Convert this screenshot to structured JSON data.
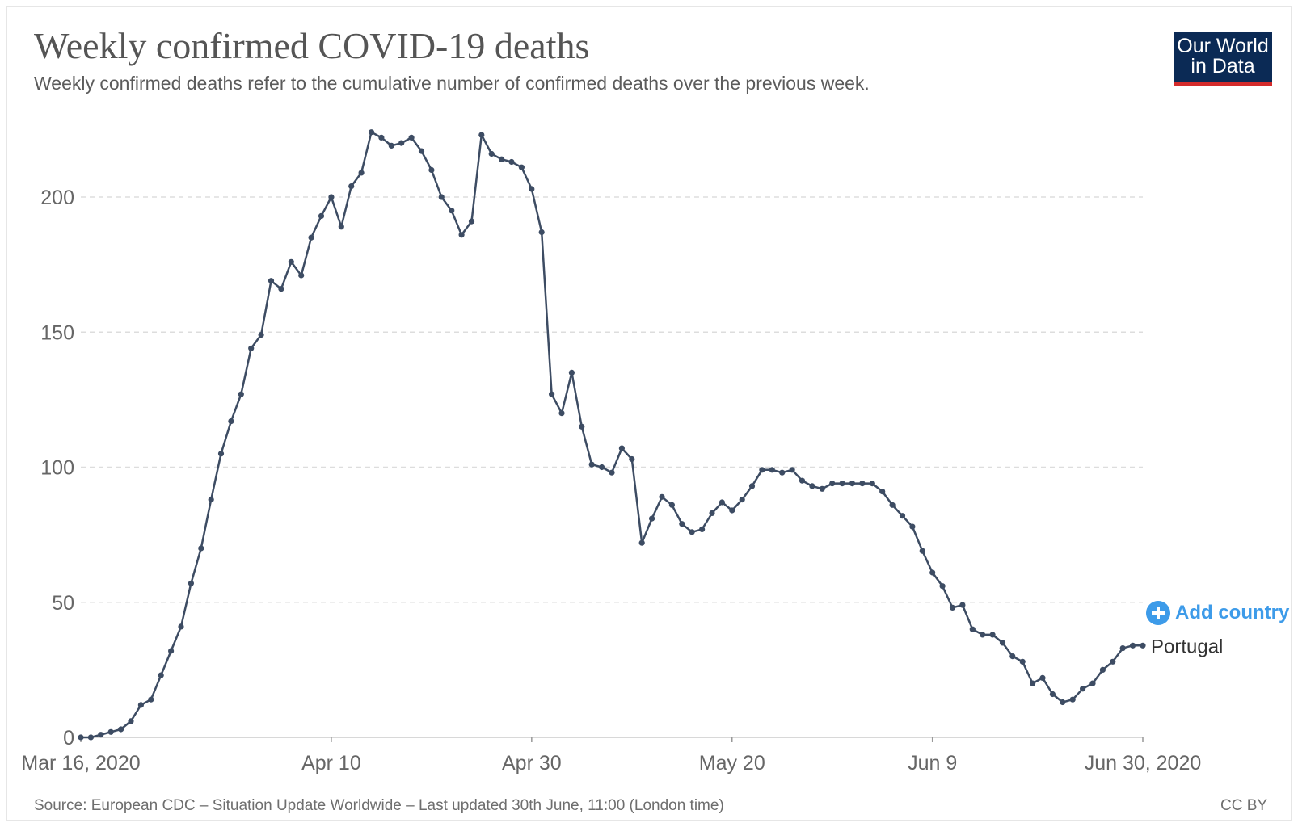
{
  "header": {
    "title": "Weekly confirmed COVID-19 deaths",
    "subtitle": "Weekly confirmed deaths refer to the cumulative number of confirmed deaths over the previous week."
  },
  "logo": {
    "line1": "Our World",
    "line2": "in Data"
  },
  "controls": {
    "add_country_label": "Add country"
  },
  "footer": {
    "source": "Source: European CDC – Situation Update Worldwide – Last updated 30th June, 11:00 (London time)",
    "license": "CC BY"
  },
  "colors": {
    "series_line": "#3d4c63",
    "accent": "#3d9be9",
    "logo_bg": "#0b2a55",
    "logo_stripe": "#d42b2b"
  },
  "chart_data": {
    "type": "line",
    "title": "Weekly confirmed COVID-19 deaths",
    "xlabel": "",
    "ylabel": "",
    "ylim": [
      0,
      225
    ],
    "yticks": [
      "0",
      "50",
      "100",
      "150",
      "200"
    ],
    "ytick_values": [
      0,
      50,
      100,
      150,
      200
    ],
    "x_start": "2020-03-16",
    "x_end": "2020-06-30",
    "xticks": [
      {
        "label": "Mar 16, 2020",
        "date": "2020-03-16"
      },
      {
        "label": "Apr 10",
        "date": "2020-04-10"
      },
      {
        "label": "Apr 30",
        "date": "2020-04-30"
      },
      {
        "label": "May 20",
        "date": "2020-05-20"
      },
      {
        "label": "Jun 9",
        "date": "2020-06-09"
      },
      {
        "label": "Jun 30, 2020",
        "date": "2020-06-30"
      }
    ],
    "grid": true,
    "series": [
      {
        "name": "Portugal",
        "values": [
          0,
          0,
          1,
          2,
          3,
          6,
          12,
          14,
          23,
          32,
          41,
          57,
          70,
          88,
          105,
          117,
          127,
          144,
          149,
          169,
          166,
          176,
          171,
          185,
          193,
          200,
          189,
          204,
          209,
          224,
          222,
          219,
          220,
          222,
          217,
          210,
          200,
          195,
          186,
          191,
          223,
          216,
          214,
          213,
          211,
          203,
          187,
          127,
          120,
          135,
          115,
          101,
          100,
          98,
          107,
          103,
          72,
          81,
          89,
          86,
          79,
          76,
          77,
          83,
          87,
          84,
          88,
          93,
          99,
          99,
          98,
          99,
          95,
          93,
          92,
          94,
          94,
          94,
          94,
          94,
          91,
          86,
          82,
          78,
          69,
          61,
          56,
          48,
          49,
          40,
          38,
          38,
          35,
          30,
          28,
          20,
          22,
          16,
          13,
          14,
          18,
          20,
          25,
          28,
          33,
          34,
          34
        ]
      }
    ]
  }
}
